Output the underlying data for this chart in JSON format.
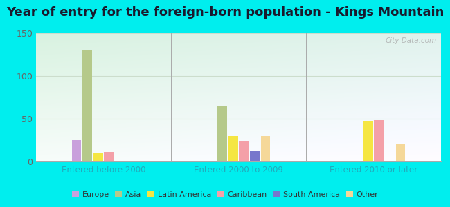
{
  "title": "Year of entry for the foreign-born population - Kings Mountain",
  "categories": [
    "Entered before 2000",
    "Entered 2000 to 2009",
    "Entered 2010 or later"
  ],
  "series": {
    "Europe": [
      25,
      0,
      0
    ],
    "Asia": [
      130,
      65,
      0
    ],
    "Latin America": [
      10,
      30,
      47
    ],
    "Caribbean": [
      11,
      24,
      48
    ],
    "South America": [
      0,
      12,
      0
    ],
    "Other": [
      0,
      30,
      20
    ]
  },
  "colors": {
    "Europe": "#c9a0dc",
    "Asia": "#b5c98a",
    "Latin America": "#f5e642",
    "Caribbean": "#f4a0a8",
    "South America": "#7777cc",
    "Other": "#f5d899"
  },
  "ylim": [
    0,
    150
  ],
  "yticks": [
    0,
    50,
    100,
    150
  ],
  "bg_top": "#c8ede0",
  "bg_bottom": "#e8f8f0",
  "outer_background": "#00eeee",
  "title_fontsize": 13,
  "watermark": "City-Data.com"
}
